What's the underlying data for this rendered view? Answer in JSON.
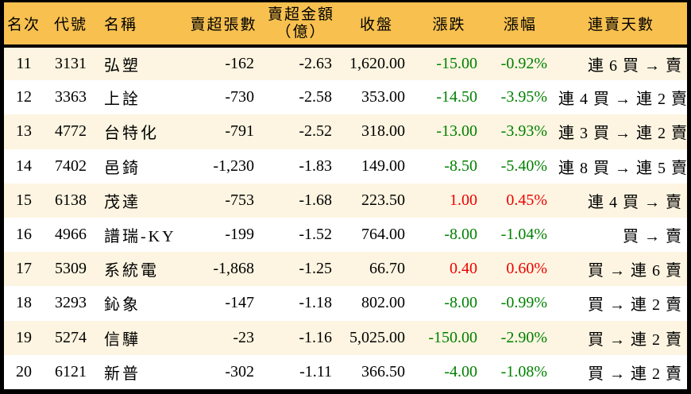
{
  "chart_data": {
    "type": "table",
    "title": "",
    "columns": [
      {
        "key": "rank",
        "label": "名次"
      },
      {
        "key": "code",
        "label": "代號"
      },
      {
        "key": "name",
        "label": "名稱"
      },
      {
        "key": "sell_volume",
        "label": "賣超張數"
      },
      {
        "key": "sell_amount",
        "label": "賣超金額",
        "label2": "（億）"
      },
      {
        "key": "close",
        "label": "收盤"
      },
      {
        "key": "change",
        "label": "漲跌"
      },
      {
        "key": "change_pct",
        "label": "漲幅"
      },
      {
        "key": "streak",
        "label": "連賣天數"
      }
    ],
    "rows": [
      {
        "rank": "11",
        "code": "3131",
        "name": "弘塑",
        "sell_volume": "-162",
        "sell_amount": "-2.63",
        "close": "1,620.00",
        "change": "-15.00",
        "change_pct": "-0.92%",
        "trend": "down",
        "streak": "連 6 買 → 賣"
      },
      {
        "rank": "12",
        "code": "3363",
        "name": "上詮",
        "sell_volume": "-730",
        "sell_amount": "-2.58",
        "close": "353.00",
        "change": "-14.50",
        "change_pct": "-3.95%",
        "trend": "down",
        "streak": "連 4 買 → 連 2 賣"
      },
      {
        "rank": "13",
        "code": "4772",
        "name": "台特化",
        "sell_volume": "-791",
        "sell_amount": "-2.52",
        "close": "318.00",
        "change": "-13.00",
        "change_pct": "-3.93%",
        "trend": "down",
        "streak": "連 3 買 → 連 2 賣"
      },
      {
        "rank": "14",
        "code": "7402",
        "name": "邑錡",
        "sell_volume": "-1,230",
        "sell_amount": "-1.83",
        "close": "149.00",
        "change": "-8.50",
        "change_pct": "-5.40%",
        "trend": "down",
        "streak": "連 8 買 → 連 5 賣"
      },
      {
        "rank": "15",
        "code": "6138",
        "name": "茂達",
        "sell_volume": "-753",
        "sell_amount": "-1.68",
        "close": "223.50",
        "change": "1.00",
        "change_pct": "0.45%",
        "trend": "up",
        "streak": "連 4 買 → 賣"
      },
      {
        "rank": "16",
        "code": "4966",
        "name": "譜瑞-KY",
        "sell_volume": "-199",
        "sell_amount": "-1.52",
        "close": "764.00",
        "change": "-8.00",
        "change_pct": "-1.04%",
        "trend": "down",
        "streak": "買 → 賣"
      },
      {
        "rank": "17",
        "code": "5309",
        "name": "系統電",
        "sell_volume": "-1,868",
        "sell_amount": "-1.25",
        "close": "66.70",
        "change": "0.40",
        "change_pct": "0.60%",
        "trend": "up",
        "streak": "買 → 連 6 賣"
      },
      {
        "rank": "18",
        "code": "3293",
        "name": "鈊象",
        "sell_volume": "-147",
        "sell_amount": "-1.18",
        "close": "802.00",
        "change": "-8.00",
        "change_pct": "-0.99%",
        "trend": "down",
        "streak": "買 → 連 2 賣"
      },
      {
        "rank": "19",
        "code": "5274",
        "name": "信驊",
        "sell_volume": "-23",
        "sell_amount": "-1.16",
        "close": "5,025.00",
        "change": "-150.00",
        "change_pct": "-2.90%",
        "trend": "down",
        "streak": "買 → 連 2 賣"
      },
      {
        "rank": "20",
        "code": "6121",
        "name": "新普",
        "sell_volume": "-302",
        "sell_amount": "-1.11",
        "close": "366.50",
        "change": "-4.00",
        "change_pct": "-1.08%",
        "trend": "down",
        "streak": "買 → 連 2 賣"
      }
    ]
  },
  "colors": {
    "header_bg": "#F7C04F",
    "row_alt_bg": "#FDF5E1",
    "row_bg": "#FFFFFF",
    "border": "#000000",
    "up": "#EE0000",
    "down": "#008000",
    "text": "#000000"
  }
}
